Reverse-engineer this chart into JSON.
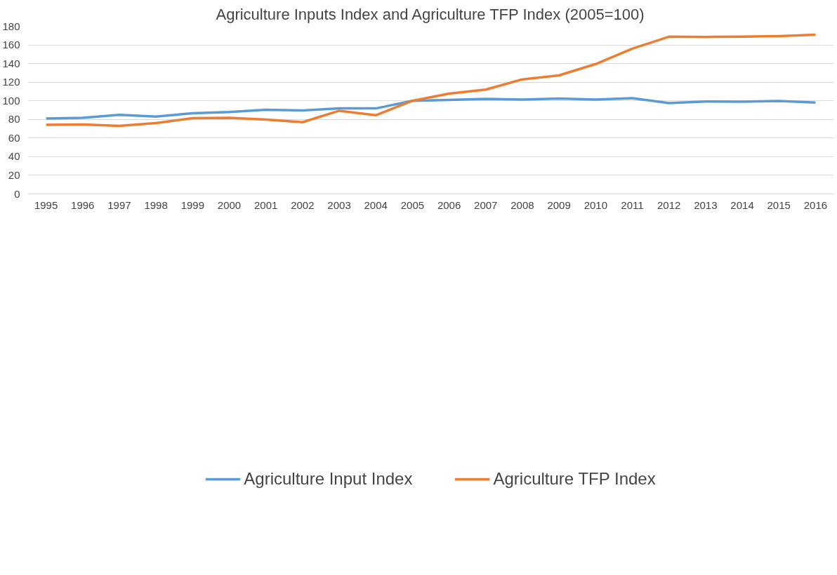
{
  "chart_data": {
    "type": "line",
    "title": "Agriculture Inputs Index and Agriculture TFP Index (2005=100)",
    "categories": [
      "1995",
      "1996",
      "1997",
      "1998",
      "1999",
      "2000",
      "2001",
      "2002",
      "2003",
      "2004",
      "2005",
      "2006",
      "2007",
      "2008",
      "2009",
      "2010",
      "2011",
      "2012",
      "2013",
      "2014",
      "2015",
      "2016"
    ],
    "series": [
      {
        "name": "Agriculture Input Index",
        "color": "#5b9bd5",
        "values": [
          81,
          81.7,
          85,
          83.1,
          86.6,
          88,
          90.3,
          89.7,
          91.8,
          91.8,
          100,
          101,
          102,
          101.3,
          102.5,
          101.3,
          102.8,
          97.5,
          99.3,
          99,
          99.8,
          98.1
        ]
      },
      {
        "name": "Agriculture TFP Index",
        "color": "#ed7d31",
        "values": [
          74.2,
          74.5,
          73,
          76,
          81.3,
          81.7,
          79.8,
          77,
          89.3,
          84.5,
          100,
          107.7,
          112,
          123,
          127.3,
          139.5,
          156,
          168.8,
          168.6,
          168.8,
          169.5,
          171
        ]
      }
    ],
    "ylim": [
      0,
      180
    ],
    "yticks": [
      0,
      20,
      40,
      60,
      80,
      100,
      120,
      140,
      160,
      180
    ],
    "grid": "y",
    "legend": "bottom",
    "marker": "none",
    "line_style": "solid"
  }
}
